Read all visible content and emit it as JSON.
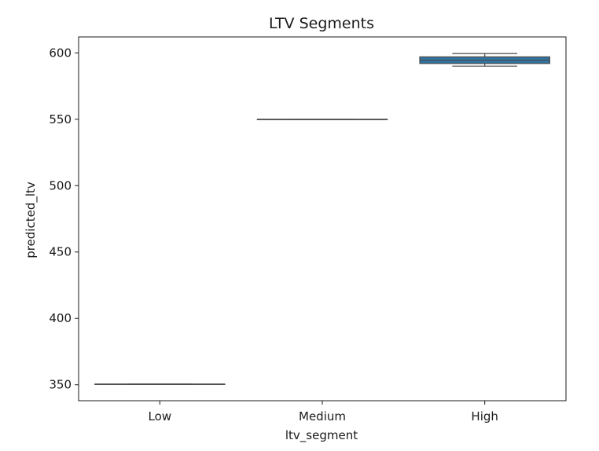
{
  "chart_data": {
    "type": "box",
    "title": "LTV Segments",
    "xlabel": "ltv_segment",
    "ylabel": "predicted_ltv",
    "categories": [
      "Low",
      "Medium",
      "High"
    ],
    "boxes": [
      {
        "category": "Low",
        "whisker_low": 350.5,
        "q1": 350.5,
        "median": 350.5,
        "q3": 350.5,
        "whisker_high": 350.5
      },
      {
        "category": "Medium",
        "whisker_low": 550,
        "q1": 550,
        "median": 550,
        "q3": 550,
        "whisker_high": 550
      },
      {
        "category": "High",
        "whisker_low": 590,
        "q1": 592,
        "median": 594.5,
        "q3": 597,
        "whisker_high": 599.5
      }
    ],
    "yticks": [
      350,
      400,
      450,
      500,
      550,
      600
    ],
    "ylim": [
      338,
      612
    ],
    "grid": false,
    "box_color": "#3274a1",
    "line_color": "#4a4a4a"
  }
}
